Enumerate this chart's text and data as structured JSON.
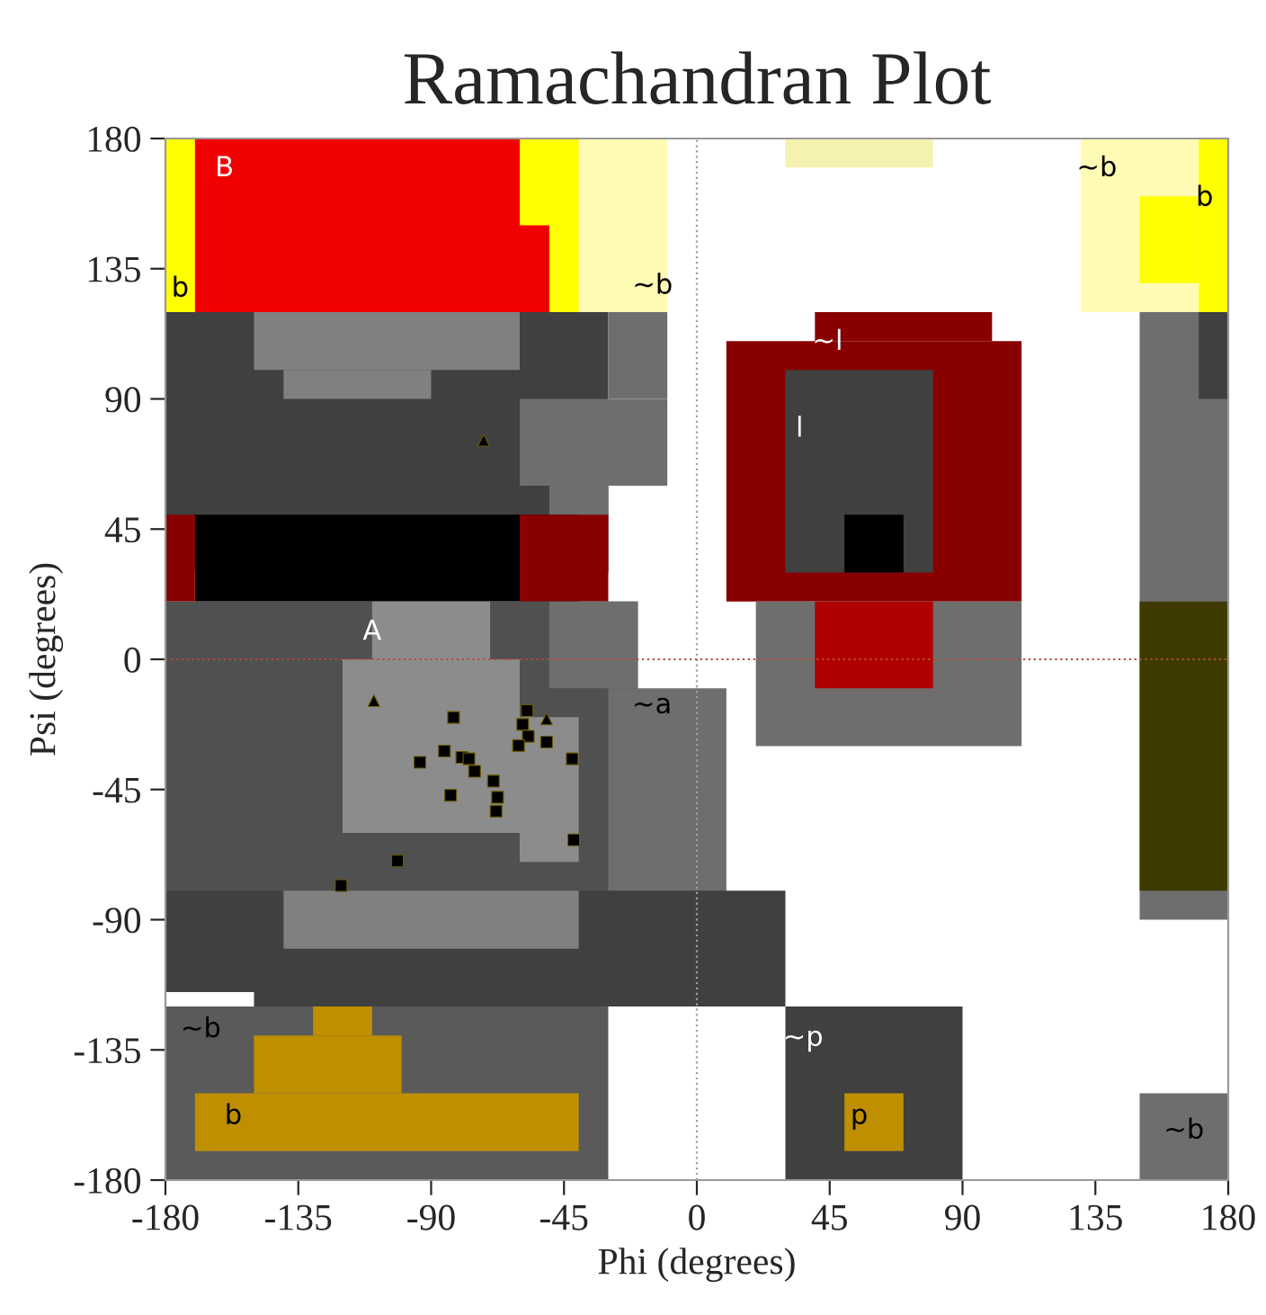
{
  "chart_data": {
    "type": "scatter",
    "title": "Ramachandran Plot",
    "xlabel": "Phi (degrees)",
    "ylabel": "Psi (degrees)",
    "xlim": [
      -180,
      180
    ],
    "ylim": [
      -180,
      180
    ],
    "xticks": [
      -180,
      -135,
      -90,
      -45,
      0,
      45,
      90,
      135,
      180
    ],
    "yticks": [
      -180,
      -135,
      -90,
      -45,
      0,
      45,
      90,
      135,
      180
    ],
    "grid": false,
    "legend": false,
    "series": [
      {
        "color": "#000000",
        "marker": "square",
        "x": [
          -82.4,
          -57.5,
          -59,
          -57.1,
          -60.4,
          -50.9,
          -42.2,
          -93.8,
          -85.5,
          -79.6,
          -77.2,
          -75.3,
          -68.9,
          -67.5,
          -68.0,
          -83.4,
          -41.7,
          -101.4,
          -120.5
        ],
        "values": [
          -20.1,
          -17.7,
          -22.5,
          -26.6,
          -29.8,
          -28.6,
          -34.4,
          -35.6,
          -31.7,
          -33.9,
          -34.4,
          -38.7,
          -42.1,
          -47.7,
          -52.5,
          -47.0,
          -62.4,
          -69.7,
          -78.2
        ]
      },
      {
        "color": "#000000",
        "marker": "triangle",
        "x": [
          -72.2,
          -109.4,
          -50.9
        ],
        "values": [
          75.7,
          -14.3,
          -20.6
        ]
      }
    ],
    "ref_lines": [
      {
        "axis": "x",
        "value": 0,
        "color": "#a0a0a0",
        "line_style": "dotted"
      },
      {
        "axis": "y",
        "value": 0,
        "color": "#b05030",
        "line_style": "dotted"
      }
    ],
    "annotations": [
      "B",
      "b",
      "~b",
      "~l",
      "l",
      "A",
      "~a",
      "~b",
      "b",
      "~p",
      "p",
      "~b",
      "b",
      "~b"
    ]
  }
}
